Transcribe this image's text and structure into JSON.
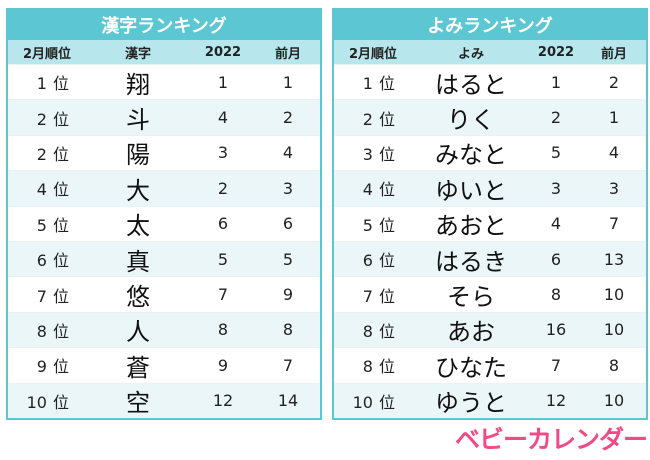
{
  "kanji_table": {
    "title": "漢字ランキング",
    "headers": {
      "rank": "2月順位",
      "item": "漢字",
      "y2022": "2022",
      "prev": "前月"
    },
    "rows": [
      {
        "rank": "1",
        "suffix": "位",
        "item": "翔",
        "y2022": "1",
        "prev": "1"
      },
      {
        "rank": "2",
        "suffix": "位",
        "item": "斗",
        "y2022": "4",
        "prev": "2"
      },
      {
        "rank": "2",
        "suffix": "位",
        "item": "陽",
        "y2022": "3",
        "prev": "4"
      },
      {
        "rank": "4",
        "suffix": "位",
        "item": "大",
        "y2022": "2",
        "prev": "3"
      },
      {
        "rank": "5",
        "suffix": "位",
        "item": "太",
        "y2022": "6",
        "prev": "6"
      },
      {
        "rank": "6",
        "suffix": "位",
        "item": "真",
        "y2022": "5",
        "prev": "5"
      },
      {
        "rank": "7",
        "suffix": "位",
        "item": "悠",
        "y2022": "7",
        "prev": "9"
      },
      {
        "rank": "8",
        "suffix": "位",
        "item": "人",
        "y2022": "8",
        "prev": "8"
      },
      {
        "rank": "9",
        "suffix": "位",
        "item": "蒼",
        "y2022": "9",
        "prev": "7"
      },
      {
        "rank": "10",
        "suffix": "位",
        "item": "空",
        "y2022": "12",
        "prev": "14"
      }
    ]
  },
  "yomi_table": {
    "title": "よみランキング",
    "headers": {
      "rank": "2月順位",
      "item": "よみ",
      "y2022": "2022",
      "prev": "前月"
    },
    "rows": [
      {
        "rank": "1",
        "suffix": "位",
        "item": "はると",
        "y2022": "1",
        "prev": "2"
      },
      {
        "rank": "2",
        "suffix": "位",
        "item": "りく",
        "y2022": "2",
        "prev": "1"
      },
      {
        "rank": "3",
        "suffix": "位",
        "item": "みなと",
        "y2022": "5",
        "prev": "4"
      },
      {
        "rank": "4",
        "suffix": "位",
        "item": "ゆいと",
        "y2022": "3",
        "prev": "3"
      },
      {
        "rank": "5",
        "suffix": "位",
        "item": "あおと",
        "y2022": "4",
        "prev": "7"
      },
      {
        "rank": "6",
        "suffix": "位",
        "item": "はるき",
        "y2022": "6",
        "prev": "13"
      },
      {
        "rank": "7",
        "suffix": "位",
        "item": "そら",
        "y2022": "8",
        "prev": "10"
      },
      {
        "rank": "8",
        "suffix": "位",
        "item": "あお",
        "y2022": "16",
        "prev": "10"
      },
      {
        "rank": "8",
        "suffix": "位",
        "item": "ひなた",
        "y2022": "7",
        "prev": "8"
      },
      {
        "rank": "10",
        "suffix": "位",
        "item": "ゆうと",
        "y2022": "12",
        "prev": "10"
      }
    ]
  },
  "logo": {
    "text": "ベビーカレンダー"
  },
  "colors": {
    "accent": "#5cc6d3",
    "header_bg": "#b7e6ec",
    "row_alt": "#eaf6f8",
    "logo": "#f24a86"
  }
}
